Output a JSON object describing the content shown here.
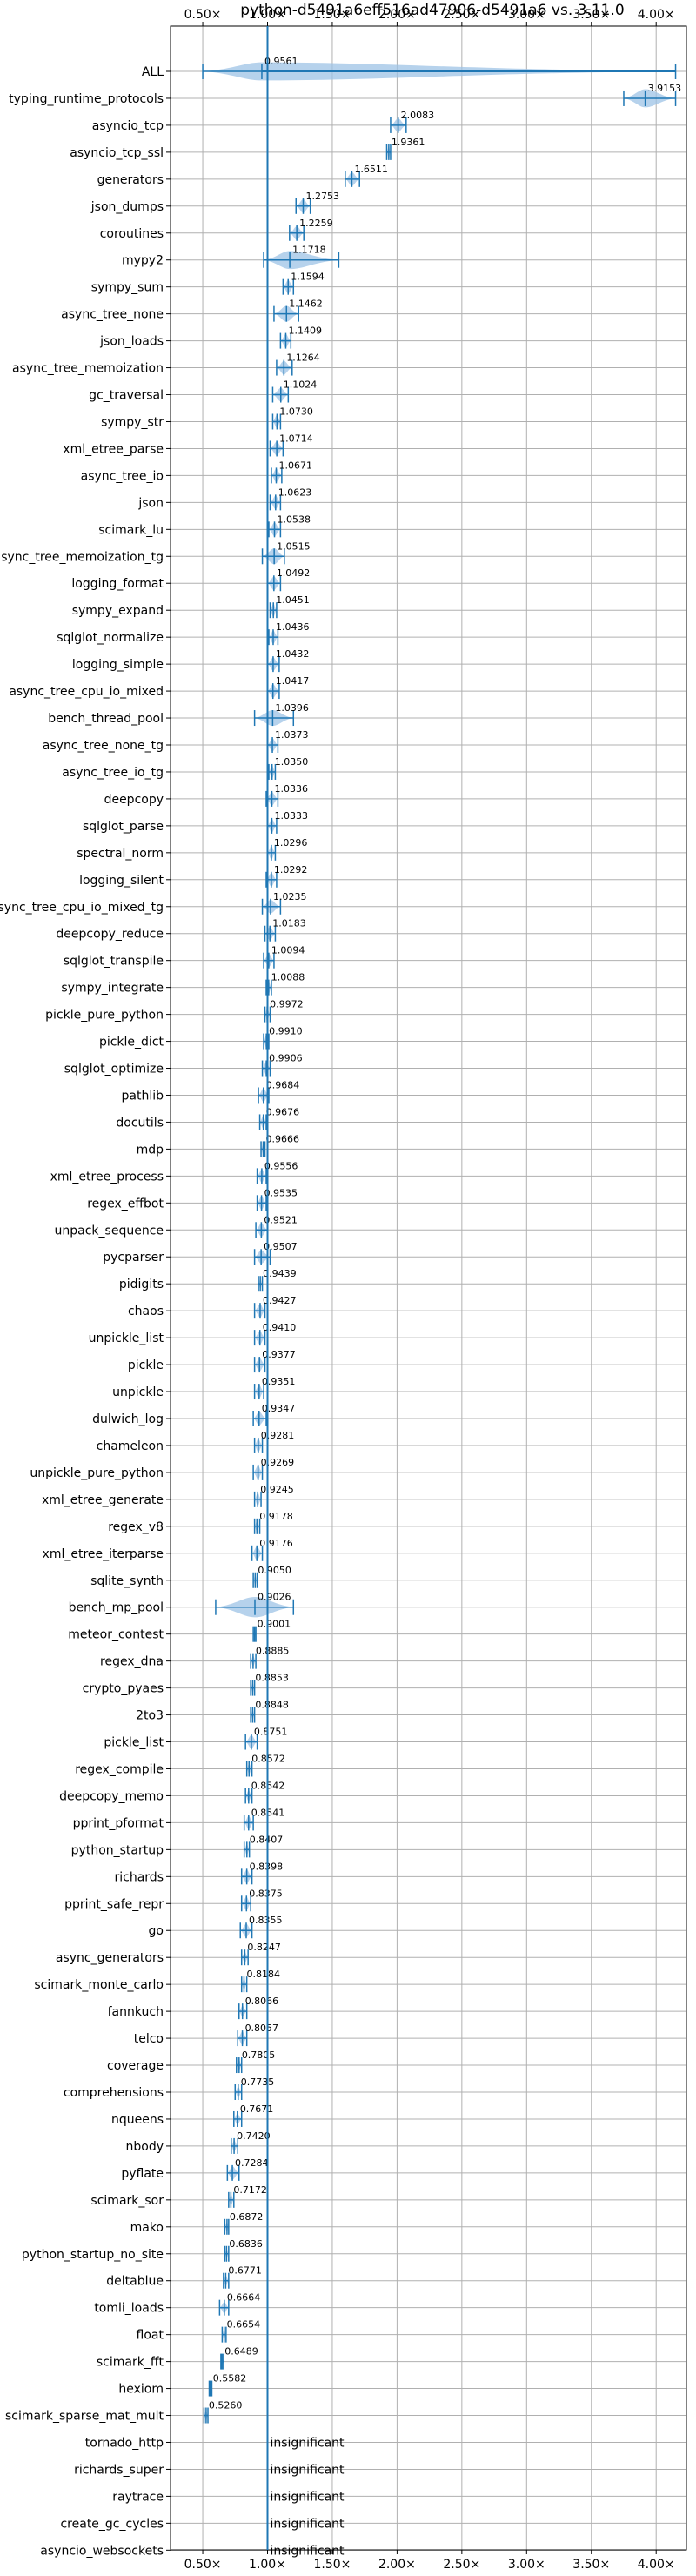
{
  "chart_data": {
    "type": "violin",
    "title": "python-d5491a6eff516ad47906-d5491a6 vs. 3.11.0",
    "xlim": [
      0.3,
      4.25
    ],
    "x_ticks": [
      0.5,
      1.0,
      1.5,
      2.0,
      2.5,
      3.0,
      3.5,
      4.0
    ],
    "x_tick_labels": [
      "0.50×",
      "1.00×",
      "1.50×",
      "2.00×",
      "2.50×",
      "3.00×",
      "3.50×",
      "4.00×"
    ],
    "reference_line": 1.0,
    "grid": true,
    "colors": {
      "violin": "#9ec3e6",
      "stroke": "#1f77b4",
      "text": "#000000"
    },
    "insignificant_label": "insignificant",
    "benchmarks": [
      {
        "name": "ALL",
        "value": 0.9561,
        "label": "0.9561",
        "spread": [
          0.5,
          4.15
        ],
        "width": 0.8
      },
      {
        "name": "typing_runtime_protocols",
        "value": 3.9153,
        "label": "3.9153",
        "spread": [
          3.75,
          4.15
        ],
        "width": 0.8
      },
      {
        "name": "asyncio_tcp",
        "value": 2.0083,
        "label": "2.0083",
        "spread": [
          1.95,
          2.07
        ],
        "width": 0.6
      },
      {
        "name": "asyncio_tcp_ssl",
        "value": 1.9361,
        "label": "1.9361",
        "spread": [
          1.92,
          1.95
        ],
        "width": 0.6
      },
      {
        "name": "generators",
        "value": 1.6511,
        "label": "1.6511",
        "spread": [
          1.6,
          1.71
        ],
        "width": 0.6
      },
      {
        "name": "json_dumps",
        "value": 1.2753,
        "label": "1.2753",
        "spread": [
          1.22,
          1.33
        ],
        "width": 0.6
      },
      {
        "name": "coroutines",
        "value": 1.2259,
        "label": "1.2259",
        "spread": [
          1.17,
          1.28
        ],
        "width": 0.6
      },
      {
        "name": "mypy2",
        "value": 1.1718,
        "label": "1.1718",
        "spread": [
          0.97,
          1.55
        ],
        "width": 0.8
      },
      {
        "name": "sympy_sum",
        "value": 1.1594,
        "label": "1.1594",
        "spread": [
          1.12,
          1.2
        ],
        "width": 0.6
      },
      {
        "name": "async_tree_none",
        "value": 1.1462,
        "label": "1.1462",
        "spread": [
          1.05,
          1.24
        ],
        "width": 0.7
      },
      {
        "name": "json_loads",
        "value": 1.1409,
        "label": "1.1409",
        "spread": [
          1.1,
          1.18
        ],
        "width": 0.6
      },
      {
        "name": "async_tree_memoization",
        "value": 1.1264,
        "label": "1.1264",
        "spread": [
          1.07,
          1.19
        ],
        "width": 0.6
      },
      {
        "name": "gc_traversal",
        "value": 1.1024,
        "label": "1.1024",
        "spread": [
          1.04,
          1.16
        ],
        "width": 0.6
      },
      {
        "name": "sympy_str",
        "value": 1.073,
        "label": "1.0730",
        "spread": [
          1.04,
          1.1
        ],
        "width": 0.6
      },
      {
        "name": "xml_etree_parse",
        "value": 1.0714,
        "label": "1.0714",
        "spread": [
          1.02,
          1.12
        ],
        "width": 0.6
      },
      {
        "name": "async_tree_io",
        "value": 1.0671,
        "label": "1.0671",
        "spread": [
          1.03,
          1.11
        ],
        "width": 0.6
      },
      {
        "name": "json",
        "value": 1.0623,
        "label": "1.0623",
        "spread": [
          1.02,
          1.1
        ],
        "width": 0.6
      },
      {
        "name": "scimark_lu",
        "value": 1.0538,
        "label": "1.0538",
        "spread": [
          1.01,
          1.1
        ],
        "width": 0.6
      },
      {
        "name": "async_tree_memoization_tg",
        "value": 1.0515,
        "label": "1.0515",
        "spread": [
          0.96,
          1.13
        ],
        "width": 0.7
      },
      {
        "name": "logging_format",
        "value": 1.0492,
        "label": "1.0492",
        "spread": [
          1.0,
          1.1
        ],
        "width": 0.6
      },
      {
        "name": "sympy_expand",
        "value": 1.0451,
        "label": "1.0451",
        "spread": [
          1.02,
          1.07
        ],
        "width": 0.6
      },
      {
        "name": "sqlglot_normalize",
        "value": 1.0436,
        "label": "1.0436",
        "spread": [
          1.01,
          1.08
        ],
        "width": 0.6
      },
      {
        "name": "logging_simple",
        "value": 1.0432,
        "label": "1.0432",
        "spread": [
          1.0,
          1.09
        ],
        "width": 0.6
      },
      {
        "name": "async_tree_cpu_io_mixed",
        "value": 1.0417,
        "label": "1.0417",
        "spread": [
          1.0,
          1.09
        ],
        "width": 0.6
      },
      {
        "name": "bench_thread_pool",
        "value": 1.0396,
        "label": "1.0396",
        "spread": [
          0.9,
          1.2
        ],
        "width": 0.7
      },
      {
        "name": "async_tree_none_tg",
        "value": 1.0373,
        "label": "1.0373",
        "spread": [
          1.0,
          1.08
        ],
        "width": 0.6
      },
      {
        "name": "async_tree_io_tg",
        "value": 1.035,
        "label": "1.0350",
        "spread": [
          1.01,
          1.06
        ],
        "width": 0.6
      },
      {
        "name": "deepcopy",
        "value": 1.0336,
        "label": "1.0336",
        "spread": [
          0.99,
          1.08
        ],
        "width": 0.6
      },
      {
        "name": "sqlglot_parse",
        "value": 1.0333,
        "label": "1.0333",
        "spread": [
          1.0,
          1.07
        ],
        "width": 0.6
      },
      {
        "name": "spectral_norm",
        "value": 1.0296,
        "label": "1.0296",
        "spread": [
          1.0,
          1.06
        ],
        "width": 0.6
      },
      {
        "name": "logging_silent",
        "value": 1.0292,
        "label": "1.0292",
        "spread": [
          0.99,
          1.07
        ],
        "width": 0.6
      },
      {
        "name": "async_tree_cpu_io_mixed_tg",
        "value": 1.0235,
        "label": "1.0235",
        "spread": [
          0.96,
          1.1
        ],
        "width": 0.6
      },
      {
        "name": "deepcopy_reduce",
        "value": 1.0183,
        "label": "1.0183",
        "spread": [
          0.98,
          1.06
        ],
        "width": 0.6
      },
      {
        "name": "sqlglot_transpile",
        "value": 1.0094,
        "label": "1.0094",
        "spread": [
          0.97,
          1.05
        ],
        "width": 0.6
      },
      {
        "name": "sympy_integrate",
        "value": 1.0088,
        "label": "1.0088",
        "spread": [
          0.99,
          1.03
        ],
        "width": 0.6
      },
      {
        "name": "pickle_pure_python",
        "value": 0.9972,
        "label": "0.9972",
        "spread": [
          0.98,
          1.02
        ],
        "width": 0.6
      },
      {
        "name": "pickle_dict",
        "value": 0.991,
        "label": "0.9910",
        "spread": [
          0.97,
          1.01
        ],
        "width": 0.6
      },
      {
        "name": "sqlglot_optimize",
        "value": 0.9906,
        "label": "0.9906",
        "spread": [
          0.96,
          1.02
        ],
        "width": 0.6
      },
      {
        "name": "pathlib",
        "value": 0.9684,
        "label": "0.9684",
        "spread": [
          0.93,
          1.01
        ],
        "width": 0.6
      },
      {
        "name": "docutils",
        "value": 0.9676,
        "label": "0.9676",
        "spread": [
          0.94,
          0.99
        ],
        "width": 0.6
      },
      {
        "name": "mdp",
        "value": 0.9666,
        "label": "0.9666",
        "spread": [
          0.95,
          0.98
        ],
        "width": 0.5
      },
      {
        "name": "xml_etree_process",
        "value": 0.9556,
        "label": "0.9556",
        "spread": [
          0.92,
          0.99
        ],
        "width": 0.6
      },
      {
        "name": "regex_effbot",
        "value": 0.9535,
        "label": "0.9535",
        "spread": [
          0.92,
          0.99
        ],
        "width": 0.6
      },
      {
        "name": "unpack_sequence",
        "value": 0.9521,
        "label": "0.9521",
        "spread": [
          0.91,
          1.0
        ],
        "width": 0.6
      },
      {
        "name": "pycparser",
        "value": 0.9507,
        "label": "0.9507",
        "spread": [
          0.9,
          1.02
        ],
        "width": 0.6
      },
      {
        "name": "pidigits",
        "value": 0.9439,
        "label": "0.9439",
        "spread": [
          0.93,
          0.96
        ],
        "width": 0.5
      },
      {
        "name": "chaos",
        "value": 0.9427,
        "label": "0.9427",
        "spread": [
          0.9,
          0.98
        ],
        "width": 0.6
      },
      {
        "name": "unpickle_list",
        "value": 0.941,
        "label": "0.9410",
        "spread": [
          0.9,
          0.98
        ],
        "width": 0.6
      },
      {
        "name": "pickle",
        "value": 0.9377,
        "label": "0.9377",
        "spread": [
          0.9,
          0.98
        ],
        "width": 0.6
      },
      {
        "name": "unpickle",
        "value": 0.9351,
        "label": "0.9351",
        "spread": [
          0.9,
          0.97
        ],
        "width": 0.6
      },
      {
        "name": "dulwich_log",
        "value": 0.9347,
        "label": "0.9347",
        "spread": [
          0.89,
          0.99
        ],
        "width": 0.6
      },
      {
        "name": "chameleon",
        "value": 0.9281,
        "label": "0.9281",
        "spread": [
          0.9,
          0.96
        ],
        "width": 0.6
      },
      {
        "name": "unpickle_pure_python",
        "value": 0.9269,
        "label": "0.9269",
        "spread": [
          0.89,
          0.96
        ],
        "width": 0.6
      },
      {
        "name": "xml_etree_generate",
        "value": 0.9245,
        "label": "0.9245",
        "spread": [
          0.9,
          0.95
        ],
        "width": 0.6
      },
      {
        "name": "regex_v8",
        "value": 0.9178,
        "label": "0.9178",
        "spread": [
          0.9,
          0.94
        ],
        "width": 0.5
      },
      {
        "name": "xml_etree_iterparse",
        "value": 0.9176,
        "label": "0.9176",
        "spread": [
          0.88,
          0.96
        ],
        "width": 0.6
      },
      {
        "name": "sqlite_synth",
        "value": 0.905,
        "label": "0.9050",
        "spread": [
          0.89,
          0.92
        ],
        "width": 0.5
      },
      {
        "name": "bench_mp_pool",
        "value": 0.9026,
        "label": "0.9026",
        "spread": [
          0.6,
          1.2
        ],
        "width": 0.9
      },
      {
        "name": "meteor_contest",
        "value": 0.9001,
        "label": "0.9001",
        "spread": [
          0.89,
          0.91
        ],
        "width": 0.5
      },
      {
        "name": "regex_dna",
        "value": 0.8885,
        "label": "0.8885",
        "spread": [
          0.87,
          0.91
        ],
        "width": 0.5
      },
      {
        "name": "crypto_pyaes",
        "value": 0.8853,
        "label": "0.8853",
        "spread": [
          0.87,
          0.9
        ],
        "width": 0.5
      },
      {
        "name": "2to3",
        "value": 0.8848,
        "label": "0.8848",
        "spread": [
          0.87,
          0.9
        ],
        "width": 0.5
      },
      {
        "name": "pickle_list",
        "value": 0.8751,
        "label": "0.8751",
        "spread": [
          0.83,
          0.92
        ],
        "width": 0.6
      },
      {
        "name": "regex_compile",
        "value": 0.8572,
        "label": "0.8572",
        "spread": [
          0.84,
          0.88
        ],
        "width": 0.5
      },
      {
        "name": "deepcopy_memo",
        "value": 0.8542,
        "label": "0.8542",
        "spread": [
          0.83,
          0.88
        ],
        "width": 0.5
      },
      {
        "name": "pprint_pformat",
        "value": 0.8541,
        "label": "0.8541",
        "spread": [
          0.82,
          0.89
        ],
        "width": 0.6
      },
      {
        "name": "python_startup",
        "value": 0.8407,
        "label": "0.8407",
        "spread": [
          0.82,
          0.86
        ],
        "width": 0.5
      },
      {
        "name": "richards",
        "value": 0.8398,
        "label": "0.8398",
        "spread": [
          0.8,
          0.88
        ],
        "width": 0.6
      },
      {
        "name": "pprint_safe_repr",
        "value": 0.8375,
        "label": "0.8375",
        "spread": [
          0.8,
          0.87
        ],
        "width": 0.6
      },
      {
        "name": "go",
        "value": 0.8355,
        "label": "0.8355",
        "spread": [
          0.79,
          0.88
        ],
        "width": 0.6
      },
      {
        "name": "async_generators",
        "value": 0.8247,
        "label": "0.8247",
        "spread": [
          0.8,
          0.85
        ],
        "width": 0.5
      },
      {
        "name": "scimark_monte_carlo",
        "value": 0.8184,
        "label": "0.8184",
        "spread": [
          0.8,
          0.84
        ],
        "width": 0.5
      },
      {
        "name": "fannkuch",
        "value": 0.8066,
        "label": "0.8066",
        "spread": [
          0.78,
          0.84
        ],
        "width": 0.5
      },
      {
        "name": "telco",
        "value": 0.8057,
        "label": "0.8057",
        "spread": [
          0.77,
          0.84
        ],
        "width": 0.6
      },
      {
        "name": "coverage",
        "value": 0.7805,
        "label": "0.7805",
        "spread": [
          0.76,
          0.8
        ],
        "width": 0.5
      },
      {
        "name": "comprehensions",
        "value": 0.7735,
        "label": "0.7735",
        "spread": [
          0.75,
          0.8
        ],
        "width": 0.5
      },
      {
        "name": "nqueens",
        "value": 0.7671,
        "label": "0.7671",
        "spread": [
          0.74,
          0.8
        ],
        "width": 0.5
      },
      {
        "name": "nbody",
        "value": 0.742,
        "label": "0.7420",
        "spread": [
          0.72,
          0.77
        ],
        "width": 0.5
      },
      {
        "name": "pyflate",
        "value": 0.7284,
        "label": "0.7284",
        "spread": [
          0.69,
          0.78
        ],
        "width": 0.6
      },
      {
        "name": "scimark_sor",
        "value": 0.7172,
        "label": "0.7172",
        "spread": [
          0.7,
          0.74
        ],
        "width": 0.5
      },
      {
        "name": "mako",
        "value": 0.6872,
        "label": "0.6872",
        "spread": [
          0.67,
          0.7
        ],
        "width": 0.5
      },
      {
        "name": "python_startup_no_site",
        "value": 0.6836,
        "label": "0.6836",
        "spread": [
          0.67,
          0.7
        ],
        "width": 0.5
      },
      {
        "name": "deltablue",
        "value": 0.6771,
        "label": "0.6771",
        "spread": [
          0.66,
          0.7
        ],
        "width": 0.5
      },
      {
        "name": "tomli_loads",
        "value": 0.6664,
        "label": "0.6664",
        "spread": [
          0.63,
          0.7
        ],
        "width": 0.5
      },
      {
        "name": "float",
        "value": 0.6654,
        "label": "0.6654",
        "spread": [
          0.65,
          0.68
        ],
        "width": 0.5
      },
      {
        "name": "scimark_fft",
        "value": 0.6489,
        "label": "0.6489",
        "spread": [
          0.64,
          0.66
        ],
        "width": 0.5
      },
      {
        "name": "hexiom",
        "value": 0.5582,
        "label": "0.5582",
        "spread": [
          0.55,
          0.57
        ],
        "width": 0.5
      },
      {
        "name": "scimark_sparse_mat_mult",
        "value": 0.526,
        "label": "0.5260",
        "spread": [
          0.51,
          0.54
        ],
        "width": 0.5
      },
      {
        "name": "tornado_http",
        "insignificant": true
      },
      {
        "name": "richards_super",
        "insignificant": true
      },
      {
        "name": "raytrace",
        "insignificant": true
      },
      {
        "name": "create_gc_cycles",
        "insignificant": true
      },
      {
        "name": "asyncio_websockets",
        "insignificant": true
      }
    ]
  }
}
